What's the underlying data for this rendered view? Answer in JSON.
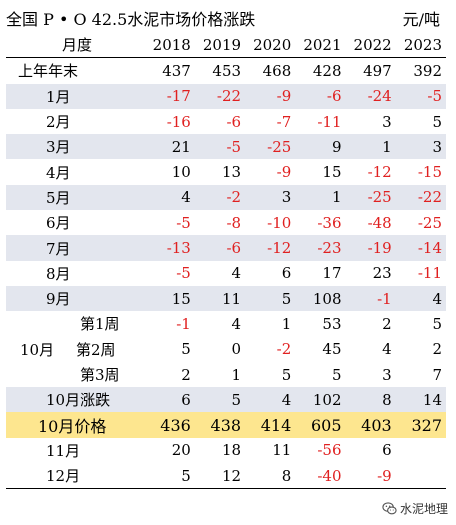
{
  "header": {
    "title": "全国 P • O 42.5水泥市场价格涨跌",
    "unit": "元/吨"
  },
  "table": {
    "col_label": "月度",
    "years": [
      "2018",
      "2019",
      "2020",
      "2021",
      "2022",
      "2023"
    ],
    "rows": [
      {
        "label": "上年年末",
        "values": [
          "437",
          "453",
          "468",
          "428",
          "497",
          "392"
        ]
      },
      {
        "label": "1月",
        "values": [
          "-17",
          "-22",
          "-9",
          "-6",
          "-24",
          "-5"
        ]
      },
      {
        "label": "2月",
        "values": [
          "-16",
          "-6",
          "-7",
          "-11",
          "3",
          "5"
        ]
      },
      {
        "label": "3月",
        "values": [
          "21",
          "-5",
          "-25",
          "9",
          "1",
          "3"
        ]
      },
      {
        "label": "4月",
        "values": [
          "10",
          "13",
          "-9",
          "15",
          "-12",
          "-15"
        ]
      },
      {
        "label": "5月",
        "values": [
          "4",
          "-2",
          "3",
          "1",
          "-25",
          "-22"
        ]
      },
      {
        "label": "6月",
        "values": [
          "-5",
          "-8",
          "-10",
          "-36",
          "-48",
          "-25"
        ]
      },
      {
        "label": "7月",
        "values": [
          "-13",
          "-6",
          "-12",
          "-23",
          "-19",
          "-14"
        ]
      },
      {
        "label": "8月",
        "values": [
          "-5",
          "4",
          "6",
          "17",
          "23",
          "-11"
        ]
      },
      {
        "label": "9月",
        "values": [
          "15",
          "11",
          "5",
          "108",
          "-1",
          "4"
        ]
      },
      {
        "label": "第1周",
        "values": [
          "-1",
          "4",
          "1",
          "53",
          "2",
          "5"
        ]
      },
      {
        "label": "第2周",
        "values": [
          "5",
          "0",
          "-2",
          "45",
          "4",
          "2"
        ]
      },
      {
        "label": "第3周",
        "values": [
          "2",
          "1",
          "5",
          "5",
          "3",
          "7"
        ]
      },
      {
        "label": "10月涨跌",
        "values": [
          "6",
          "5",
          "4",
          "102",
          "8",
          "14"
        ]
      },
      {
        "label": "10月价格",
        "values": [
          "436",
          "438",
          "414",
          "605",
          "403",
          "327"
        ]
      },
      {
        "label": "11月",
        "values": [
          "20",
          "18",
          "11",
          "-56",
          "6",
          ""
        ]
      },
      {
        "label": "12月",
        "values": [
          "5",
          "12",
          "8",
          "-40",
          "-9",
          ""
        ]
      }
    ],
    "group_label": "10月"
  },
  "watermark": {
    "text": "水泥地理",
    "icon": "wechat-icon"
  }
}
